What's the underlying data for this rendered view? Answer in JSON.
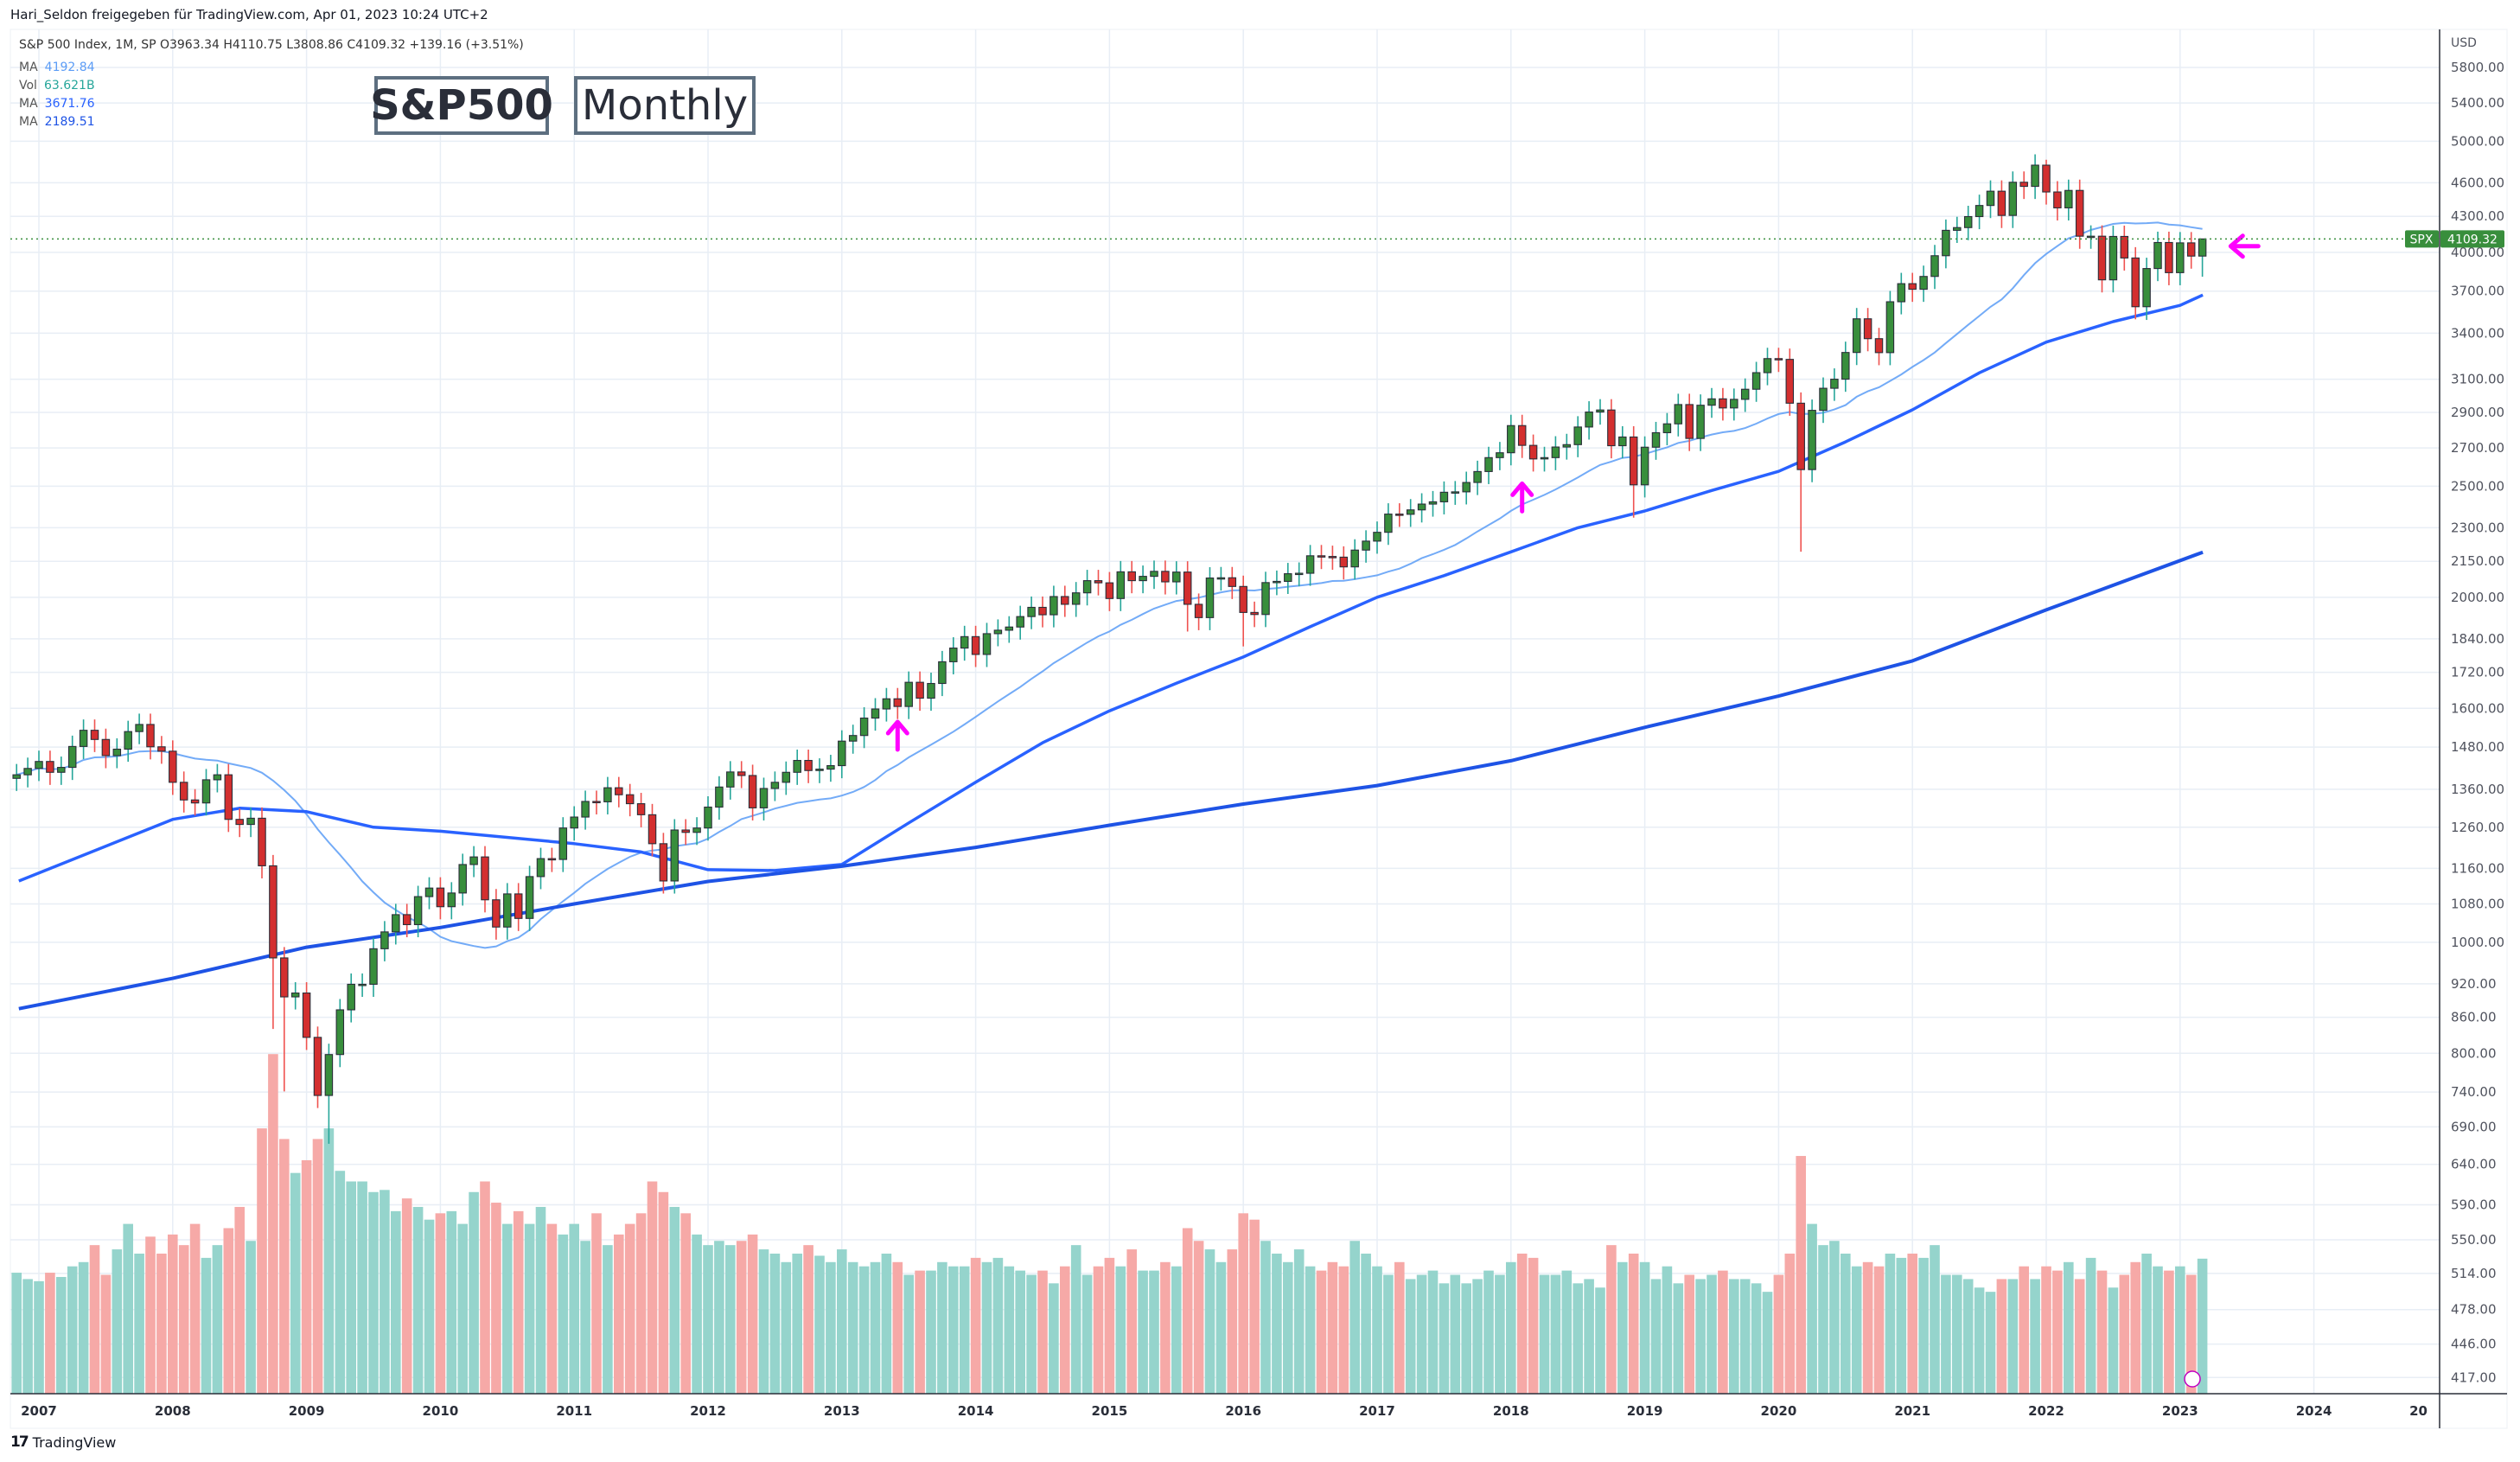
{
  "header": {
    "share_text": "Hari_Seldon freigegeben für TradingView.com, Apr 01, 2023 10:24 UTC+2"
  },
  "legend": {
    "symbol_line": "S&P 500 Index, 1M, SP  O3963.34  H4110.75  L3808.86  C4109.32  +139.16 (+3.51%)",
    "rows": [
      {
        "label": "MA",
        "value": "4192.84",
        "color": "#5b9cf6"
      },
      {
        "label": "Vol",
        "value": "63.621B",
        "color": "#26a69a"
      },
      {
        "label": "MA",
        "value": "3671.76",
        "color": "#2962ff"
      },
      {
        "label": "MA",
        "value": "2189.51",
        "color": "#1e53e5"
      }
    ]
  },
  "annotations": {
    "title_box": "S&P500",
    "interval_box": "Monthly",
    "arrows": [
      {
        "date": "2013-06",
        "price": 1530,
        "direction": "up"
      },
      {
        "date": "2018-02",
        "price": 2470,
        "direction": "up"
      },
      {
        "date": "2023-06",
        "price": 4050,
        "direction": "left"
      }
    ]
  },
  "price_label": {
    "symbol": "SPX",
    "value": "4109.32"
  },
  "footer": {
    "brand": "TradingView"
  },
  "colors": {
    "up_body": "#388e3c",
    "down_body": "#d32f2f",
    "up_wick": "#26a69a",
    "down_wick": "#ef5350",
    "vol_up": "#95d4cc",
    "vol_down": "#f6a9a7",
    "arrow": "#ff00ff",
    "grid": "#e8eef5"
  },
  "chart_data": {
    "type": "candlestick",
    "title": "S&P500 Monthly",
    "currency": "USD",
    "y_scale": "log",
    "ylim": [
      405,
      6000
    ],
    "y_ticks": [
      "5800.00",
      "5400.00",
      "5000.00",
      "4600.00",
      "4300.00",
      "4000.00",
      "3700.00",
      "3400.00",
      "3100.00",
      "2900.00",
      "2700.00",
      "2500.00",
      "2300.00",
      "2150.00",
      "2000.00",
      "1840.00",
      "1720.00",
      "1600.00",
      "1480.00",
      "1360.00",
      "1260.00",
      "1160.00",
      "1080.00",
      "1000.00",
      "920.00",
      "860.00",
      "800.00",
      "740.00",
      "690.00",
      "640.00",
      "590.00",
      "550.00",
      "514.00",
      "478.00",
      "446.00",
      "417.00"
    ],
    "x_ticks": [
      "2007",
      "2008",
      "2009",
      "2010",
      "2011",
      "2012",
      "2013",
      "2014",
      "2015",
      "2016",
      "2017",
      "2018",
      "2019",
      "2020",
      "2021",
      "2022",
      "2023",
      "2024",
      "20"
    ],
    "start_month": "2006-11",
    "first_open": 1390,
    "close": [
      1400,
      1418,
      1438,
      1407,
      1421,
      1482,
      1531,
      1503,
      1455,
      1474,
      1527,
      1549,
      1481,
      1468,
      1379,
      1331,
      1323,
      1386,
      1400,
      1280,
      1267,
      1283,
      1166,
      969,
      896,
      903,
      826,
      735,
      798,
      873,
      919,
      919,
      987,
      1021,
      1057,
      1036,
      1096,
      1115,
      1074,
      1104,
      1169,
      1187,
      1089,
      1031,
      1102,
      1049,
      1141,
      1183,
      1181,
      1258,
      1286,
      1327,
      1326,
      1364,
      1345,
      1321,
      1292,
      1219,
      1131,
      1253,
      1247,
      1258,
      1312,
      1366,
      1408,
      1398,
      1310,
      1362,
      1379,
      1407,
      1441,
      1412,
      1416,
      1426,
      1498,
      1515,
      1569,
      1598,
      1631,
      1606,
      1686,
      1633,
      1682,
      1757,
      1806,
      1848,
      1783,
      1859,
      1872,
      1884,
      1924,
      1960,
      1931,
      2003,
      1972,
      2018,
      2068,
      2059,
      1995,
      2105,
      2068,
      2086,
      2107,
      2063,
      2104,
      1972,
      1920,
      2079,
      2080,
      2044,
      1940,
      1932,
      2060,
      2065,
      2097,
      2099,
      2174,
      2171,
      2168,
      2126,
      2199,
      2239,
      2279,
      2364,
      2363,
      2384,
      2412,
      2423,
      2470,
      2472,
      2519,
      2575,
      2648,
      2674,
      2824,
      2714,
      2641,
      2648,
      2705,
      2718,
      2816,
      2902,
      2914,
      2712,
      2760,
      2507,
      2704,
      2784,
      2834,
      2946,
      2752,
      2942,
      2980,
      2926,
      2977,
      3038,
      3141,
      3231,
      3226,
      2954,
      2585,
      2912,
      3044,
      3100,
      3271,
      3500,
      3363,
      3270,
      3622,
      3756,
      3714,
      3811,
      3973,
      4181,
      4204,
      4298,
      4395,
      4523,
      4308,
      4605,
      4567,
      4766,
      4516,
      4374,
      4530,
      4132,
      4132,
      3785,
      4130,
      3955,
      3586,
      3872,
      4080,
      3840,
      4077,
      3970,
      4109.32
    ],
    "low_overrides": {
      "2008-10": 840,
      "2008-11": 741,
      "2009-03": 667,
      "2015-08": 1867,
      "2016-01": 1812,
      "2018-12": 2347,
      "2020-03": 2192,
      "2022-10": 3492,
      "2023-03": 3808.86
    },
    "high_overrides": {
      "2023-03": 4110.75,
      "2022-01": 4818
    },
    "volume_billions": [
      57,
      54,
      53,
      57,
      55,
      60,
      62,
      70,
      56,
      68,
      80,
      66,
      74,
      66,
      75,
      70,
      80,
      64,
      70,
      78,
      88,
      72,
      125,
      160,
      120,
      104,
      110,
      120,
      125,
      105,
      100,
      100,
      95,
      96,
      86,
      92,
      88,
      82,
      85,
      86,
      80,
      95,
      100,
      90,
      80,
      86,
      80,
      88,
      80,
      75,
      80,
      72,
      85,
      70,
      75,
      80,
      85,
      100,
      95,
      88,
      85,
      75,
      70,
      72,
      70,
      72,
      75,
      68,
      66,
      62,
      66,
      70,
      65,
      62,
      68,
      62,
      60,
      62,
      66,
      62,
      56,
      58,
      58,
      62,
      60,
      60,
      64,
      62,
      64,
      60,
      58,
      56,
      58,
      52,
      60,
      70,
      56,
      60,
      64,
      60,
      68,
      58,
      58,
      62,
      60,
      78,
      72,
      68,
      62,
      68,
      85,
      82,
      72,
      66,
      62,
      68,
      60,
      58,
      62,
      60,
      72,
      66,
      60,
      56,
      62,
      54,
      56,
      58,
      52,
      56,
      52,
      54,
      58,
      56,
      62,
      66,
      64,
      56,
      56,
      58,
      52,
      54,
      50,
      70,
      62,
      66,
      62,
      54,
      60,
      52,
      56,
      54,
      56,
      58,
      54,
      54,
      52,
      48,
      56,
      66,
      112,
      80,
      70,
      72,
      66,
      60,
      62,
      60,
      66,
      64,
      66,
      64,
      70,
      56,
      56,
      54,
      50,
      48,
      54,
      54,
      60,
      54,
      60,
      58,
      62,
      54,
      64,
      58,
      50,
      56,
      62,
      66,
      60,
      58,
      60,
      56,
      63.621
    ],
    "ma_fast": {
      "period_months": 20,
      "last": 4192.84
    },
    "ma_mid": {
      "last": 3671.76,
      "points": [
        [
          2006.85,
          1131
        ],
        [
          2008.0,
          1280
        ],
        [
          2008.5,
          1309
        ],
        [
          2009.0,
          1300
        ],
        [
          2009.5,
          1260
        ],
        [
          2010.0,
          1250
        ],
        [
          2011.0,
          1219
        ],
        [
          2011.5,
          1199
        ],
        [
          2012.0,
          1157
        ],
        [
          2012.5,
          1155
        ],
        [
          2013.0,
          1169
        ],
        [
          2013.5,
          1271
        ],
        [
          2014.0,
          1379
        ],
        [
          2014.5,
          1493
        ],
        [
          2015.0,
          1592
        ],
        [
          2015.5,
          1683
        ],
        [
          2016.0,
          1774
        ],
        [
          2016.5,
          1885
        ],
        [
          2017.0,
          2000
        ],
        [
          2017.5,
          2089
        ],
        [
          2018.0,
          2191
        ],
        [
          2018.5,
          2300
        ],
        [
          2019.0,
          2379
        ],
        [
          2019.5,
          2479
        ],
        [
          2020.0,
          2576
        ],
        [
          2020.5,
          2733
        ],
        [
          2021.0,
          2915
        ],
        [
          2021.5,
          3140
        ],
        [
          2022.0,
          3340
        ],
        [
          2022.5,
          3480
        ],
        [
          2023.0,
          3596
        ],
        [
          2023.17,
          3671.76
        ]
      ]
    },
    "ma_slow": {
      "last": 2189.51,
      "points": [
        [
          2006.85,
          875
        ],
        [
          2008.0,
          930
        ],
        [
          2009.0,
          990
        ],
        [
          2010.0,
          1030
        ],
        [
          2011.0,
          1080
        ],
        [
          2012.0,
          1130
        ],
        [
          2013.0,
          1165
        ],
        [
          2014.0,
          1210
        ],
        [
          2015.0,
          1265
        ],
        [
          2016.0,
          1320
        ],
        [
          2017.0,
          1370
        ],
        [
          2018.0,
          1440
        ],
        [
          2019.0,
          1540
        ],
        [
          2020.0,
          1640
        ],
        [
          2021.0,
          1760
        ],
        [
          2022.0,
          1950
        ],
        [
          2023.17,
          2189.51
        ]
      ]
    }
  }
}
